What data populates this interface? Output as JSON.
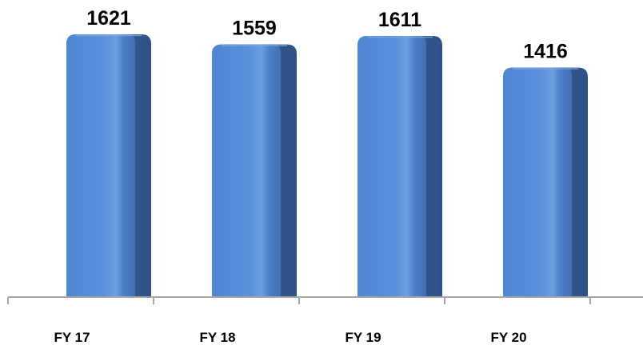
{
  "chart_data": {
    "type": "bar",
    "title": "",
    "xlabel": "",
    "ylabel": "",
    "categories": [
      "FY 17",
      "FY 18",
      "FY 19",
      "FY 20"
    ],
    "values": [
      1621,
      1559,
      1611,
      1416
    ],
    "ylim": [
      0,
      1621
    ],
    "grid": false,
    "legend": "none",
    "colors": {
      "bar_face": "#4f86d2",
      "bar_highlight": "#7fa9e4",
      "bar_side": "#355a8e",
      "axis": "#a6a6a6"
    }
  }
}
